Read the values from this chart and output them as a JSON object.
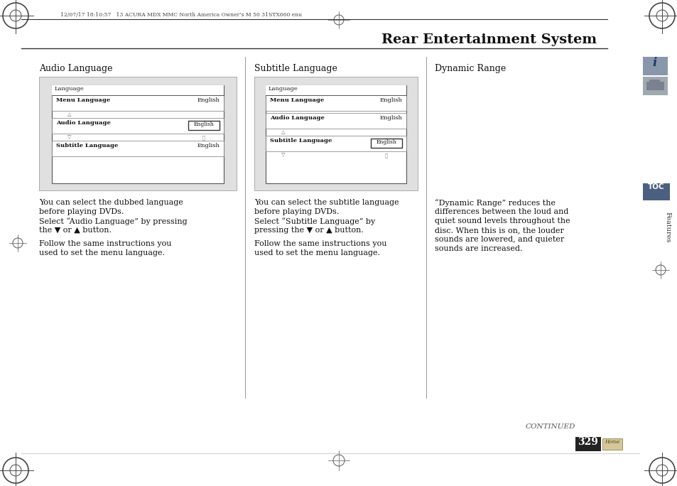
{
  "page_bg": "#ffffff",
  "title": "Rear Entertainment System",
  "header_meta": "12/07/17 18:10:57   13 ACURA MDX MMC North America Owner’s M 50 31STX660 enu",
  "page_number": "329",
  "continued_text": "CONTINUED",
  "col1_heading": "Audio Language",
  "col2_heading": "Subtitle Language",
  "col3_heading": "Dynamic Range",
  "col1_body1": "You can select the dubbed language\nbefore playing DVDs.\nSelect “Audio Language” by pressing\nthe ▼ or ▲ button.",
  "col1_body2": "Follow the same instructions you\nused to set the menu language.",
  "col2_body1": "You can select the subtitle language\nbefore playing DVDs.\nSelect “Subtitle Language” by\npressing the ▼ or ▲ button.",
  "col2_body2": "Follow the same instructions you\nused to set the menu language.",
  "col3_body": "“Dynamic Range” reduces the\ndifferences between the loud and\nquiet sound levels throughout the\ndisc. When this is on, the louder\nsounds are lowered, and quieter\nsounds are increased.",
  "screen_bg": "#e0e0e0",
  "toc_bg": "#4a6080",
  "info_bg": "#8090a0",
  "car_bg": "#909090"
}
